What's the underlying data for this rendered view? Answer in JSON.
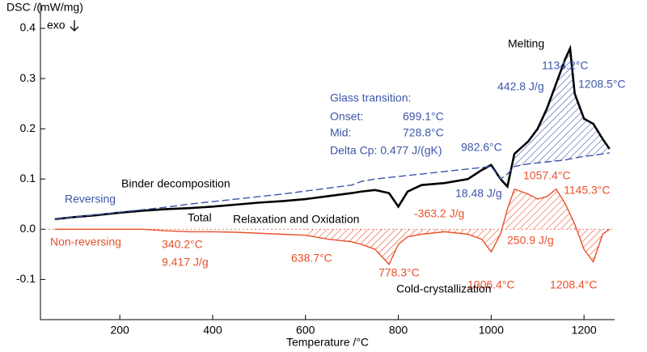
{
  "chart_data": {
    "type": "line",
    "y_label": "DSC /(mW/mg)",
    "exo_label": "exo",
    "x_label": "Temperature /°C",
    "xlim": [
      29,
      1266
    ],
    "ylim": [
      -0.18,
      0.45
    ],
    "xticks": [
      200,
      400,
      600,
      800,
      1000,
      1200
    ],
    "yticks": [
      -0.1,
      {
        "value": 0,
        "label": "0.0"
      },
      0.1,
      0.2,
      0.3,
      0.4
    ],
    "x": [
      60,
      100,
      150,
      200,
      250,
      300,
      350,
      400,
      450,
      500,
      550,
      600,
      650,
      700,
      720,
      750,
      780,
      800,
      820,
      850,
      900,
      950,
      980,
      1000,
      1020,
      1035,
      1050,
      1080,
      1100,
      1120,
      1140,
      1160,
      1170,
      1180,
      1200,
      1220,
      1240,
      1255
    ],
    "series": [
      {
        "name": "Total",
        "color": "#000000",
        "dashed": false,
        "values": [
          0.02,
          0.024,
          0.028,
          0.033,
          0.037,
          0.04,
          0.042,
          0.045,
          0.049,
          0.053,
          0.056,
          0.06,
          0.066,
          0.072,
          0.075,
          0.078,
          0.072,
          0.045,
          0.075,
          0.088,
          0.092,
          0.1,
          0.118,
          0.128,
          0.1,
          0.085,
          0.15,
          0.175,
          0.2,
          0.24,
          0.29,
          0.34,
          0.36,
          0.27,
          0.22,
          0.21,
          0.18,
          0.16
        ]
      },
      {
        "name": "Reversing",
        "color": "#3d55a8",
        "dashed": true,
        "values": [
          0.02,
          0.024,
          0.029,
          0.034,
          0.039,
          0.044,
          0.05,
          0.055,
          0.06,
          0.065,
          0.07,
          0.076,
          0.082,
          0.088,
          0.095,
          0.1,
          0.103,
          0.105,
          0.107,
          0.11,
          0.115,
          0.12,
          0.123,
          0.125,
          0.1,
          0.11,
          0.125,
          0.13,
          0.132,
          0.134,
          0.136,
          0.138,
          0.14,
          0.142,
          0.145,
          0.147,
          0.15,
          0.152
        ]
      },
      {
        "name": "Non-reversing",
        "color": "#e8502a",
        "dashed": false,
        "values": [
          0,
          0,
          0,
          0,
          0,
          -0.003,
          -0.005,
          -0.005,
          -0.006,
          -0.008,
          -0.01,
          -0.012,
          -0.02,
          -0.025,
          -0.03,
          -0.04,
          -0.07,
          -0.03,
          -0.015,
          -0.01,
          -0.005,
          -0.01,
          -0.02,
          -0.045,
          -0.01,
          0.04,
          0.08,
          0.07,
          0.06,
          0.065,
          0.08,
          0.05,
          0.03,
          0.01,
          -0.04,
          -0.065,
          -0.01,
          0
        ]
      }
    ],
    "annotations": [
      {
        "text": "Melting",
        "color": "#000000"
      },
      {
        "text": "1134.2°C",
        "color": "#3d55a8"
      },
      {
        "text": "442.8 J/g",
        "color": "#3d55a8"
      },
      {
        "text": "1208.5°C",
        "color": "#3d55a8"
      },
      {
        "text": "Glass transition:",
        "color": "#3d55a8"
      },
      {
        "text": "Onset:",
        "color": "#3d55a8"
      },
      {
        "text": "699.1°C",
        "color": "#3d55a8"
      },
      {
        "text": "Mid:",
        "color": "#3d55a8"
      },
      {
        "text": "728.8°C",
        "color": "#3d55a8"
      },
      {
        "text": "Delta Cp: 0.477 J/(gK)",
        "color": "#3d55a8"
      },
      {
        "text": "982.6°C",
        "color": "#3d55a8"
      },
      {
        "text": "Binder decomposition",
        "color": "#000000"
      },
      {
        "text": "18.48 J/g",
        "color": "#3d55a8"
      },
      {
        "text": "1057.4°C",
        "color": "#e8502a"
      },
      {
        "text": "1145.3°C",
        "color": "#e8502a"
      },
      {
        "text": "Relaxation and Oxidation",
        "color": "#000000"
      },
      {
        "text": "-363.2 J/g",
        "color": "#e8502a"
      },
      {
        "text": "340.2°C",
        "color": "#e8502a"
      },
      {
        "text": "9.417 J/g",
        "color": "#e8502a"
      },
      {
        "text": "638.7°C",
        "color": "#e8502a"
      },
      {
        "text": "250.9 J/g",
        "color": "#e8502a"
      },
      {
        "text": "778.3°C",
        "color": "#e8502a"
      },
      {
        "text": "1006.4°C",
        "color": "#e8502a"
      },
      {
        "text": "Cold-crystallization",
        "color": "#000000"
      },
      {
        "text": "1208.4°C",
        "color": "#e8502a"
      }
    ]
  }
}
